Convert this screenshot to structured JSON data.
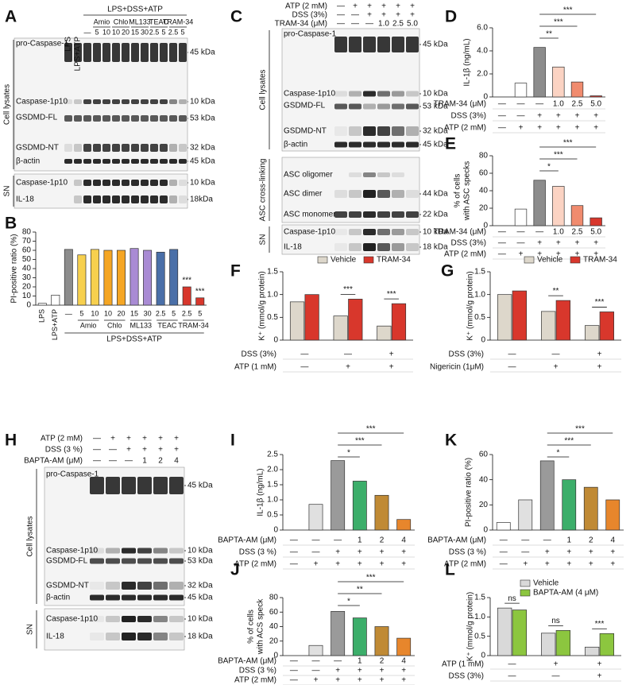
{
  "blots": [
    {
      "panel": "A",
      "lanes": [
        "LPS",
        "LPS+ATP"
      ],
      "treatment": "LPS+DSS+ATP",
      "groups": [
        "Amio",
        "Chlo",
        "ML133",
        "TEAC",
        "TRAM-34"
      ],
      "doses": [
        "—",
        "5",
        "10",
        "10",
        "20",
        "15",
        "30",
        "2.5",
        "5",
        "2.5",
        "5"
      ],
      "sections": [
        "Cell lysates",
        "SN"
      ],
      "rows": [
        {
          "label": "pro-Caspase-1",
          "kda": "45 kDa"
        },
        {
          "label": "Caspase-1p10",
          "kda": "10 kDa"
        },
        {
          "label": "GSDMD-FL",
          "kda": "53 kDa"
        },
        {
          "label": "GSDMD-NT",
          "kda": "32 kDa"
        },
        {
          "label": "β-actin",
          "kda": "45 kDa"
        },
        {
          "label": "Caspase-1p10",
          "kda": "10 kDa"
        },
        {
          "label": "IL-18",
          "kda": "18kDa"
        }
      ]
    },
    {
      "panel": "C",
      "conditions": [
        {
          "label": "ATP (2 mM)",
          "values": [
            "—",
            "+",
            "+",
            "+",
            "+",
            "+"
          ]
        },
        {
          "label": "DSS (3%)",
          "values": [
            "—",
            "—",
            "+",
            "+",
            "+",
            "+"
          ]
        },
        {
          "label": "TRAM-34 (μM)",
          "values": [
            "—",
            "—",
            "—",
            "1.0",
            "2.5",
            "5.0"
          ]
        }
      ],
      "sections": [
        "Cell lysates",
        "ASC cross-linking",
        "SN"
      ],
      "rows": [
        {
          "label": "pro-Caspase-1",
          "kda": "45 kDa"
        },
        {
          "label": "Caspase-1p10",
          "kda": "10 kDa"
        },
        {
          "label": "GSDMD-FL",
          "kda": "53 kDa"
        },
        {
          "label": "GSDMD-NT",
          "kda": "32 kDa"
        },
        {
          "label": "β-actin",
          "kda": "45 kDa"
        },
        {
          "label": "ASC oligomer"
        },
        {
          "label": "ASC dimer",
          "kda": "44 kDa"
        },
        {
          "label": "ASC monomer",
          "kda": "22 kDa"
        },
        {
          "label": "Caspase-1p10",
          "kda": "10 kDa"
        },
        {
          "label": "IL-18",
          "kda": "18 kDa"
        }
      ]
    },
    {
      "panel": "H",
      "conditions": [
        {
          "label": "ATP (2 mM)",
          "values": [
            "—",
            "+",
            "+",
            "+",
            "+",
            "+"
          ]
        },
        {
          "label": "DSS (3 %)",
          "values": [
            "—",
            "—",
            "+",
            "+",
            "+",
            "+"
          ]
        },
        {
          "label": "BAPTA-AM (μM)",
          "values": [
            "—",
            "—",
            "—",
            "1",
            "2",
            "4"
          ]
        }
      ],
      "sections": [
        "Cell lysates",
        "SN"
      ],
      "rows": [
        {
          "label": "pro-Caspase-1",
          "kda": "45 kDa"
        },
        {
          "label": "Caspase-1p10",
          "kda": "10 kDa"
        },
        {
          "label": "GSDMD-FL",
          "kda": "53 kDa"
        },
        {
          "label": "GSDMD-NT",
          "kda": "32 kDa"
        },
        {
          "label": "β-actin",
          "kda": "45 kDa"
        },
        {
          "label": "Caspase-1p10",
          "kda": "10 kDa"
        },
        {
          "label": "IL-18",
          "kda": "18 kDa"
        }
      ]
    }
  ],
  "chart_data": [
    {
      "panel": "B",
      "type": "bar",
      "ylabel": "PI-positive ratio (%)",
      "categories": [
        "LPS",
        "LPS+ATP",
        "—",
        "5",
        "10",
        "10",
        "20",
        "15",
        "30",
        "2.5",
        "5",
        "2.5",
        "5"
      ],
      "groups": [
        "Amio",
        "Chlo",
        "ML133",
        "TEAC",
        "TRAM-34"
      ],
      "group_label": "LPS+DSS+ATP",
      "values": [
        2,
        11,
        61,
        55,
        61,
        60,
        60,
        62,
        60,
        58,
        61,
        20,
        8
      ],
      "colors": [
        "#ffffff",
        "#ffffff",
        "#8c8c8c",
        "#f7d04e",
        "#f7d04e",
        "#f5a623",
        "#f5a623",
        "#a98bd4",
        "#a98bd4",
        "#4a6fa8",
        "#4a6fa8",
        "#d8372c",
        "#d8372c"
      ],
      "ylim": [
        0,
        80
      ],
      "yticks": [
        0,
        10,
        20,
        30,
        40,
        50,
        60,
        70,
        80
      ],
      "annotations": [
        "***",
        "***"
      ]
    },
    {
      "panel": "D",
      "type": "bar",
      "ylabel": "IL-1β (ng/mL)",
      "values": [
        0,
        1.2,
        4.3,
        2.6,
        1.3,
        0.1
      ],
      "colors": [
        "#ffffff",
        "#ffffff",
        "#8c8c8c",
        "#fbd3c3",
        "#f08b6e",
        "#d8372c"
      ],
      "ylim": [
        0,
        6
      ],
      "yticks": [
        0,
        {
          "value": 2,
          "label": "2.0"
        },
        {
          "value": 4,
          "label": "4.0"
        },
        {
          "value": 6,
          "label": "6.0"
        }
      ],
      "conditions": [
        {
          "label": "TRAM-34 (μM)",
          "values": [
            "—",
            "—",
            "—",
            "1.0",
            "2.5",
            "5.0"
          ]
        },
        {
          "label": "DSS (3%)",
          "values": [
            "—",
            "—",
            "+",
            "+",
            "+",
            "+"
          ]
        },
        {
          "label": "ATP (2 mM)",
          "values": [
            "—",
            "+",
            "+",
            "+",
            "+",
            "+"
          ]
        }
      ],
      "annotations": [
        "**",
        "***",
        "***"
      ]
    },
    {
      "panel": "E",
      "type": "bar",
      "ylabel": [
        "% of cells",
        "with ASC specks"
      ],
      "values": [
        0,
        19,
        52,
        45,
        23,
        9
      ],
      "colors": [
        "#ffffff",
        "#ffffff",
        "#8c8c8c",
        "#fbd3c3",
        "#f08b6e",
        "#d8372c"
      ],
      "ylim": [
        0,
        80
      ],
      "yticks": [
        0,
        20,
        40,
        60,
        80
      ],
      "conditions": [
        {
          "label": "TRAM-34 (μM)",
          "values": [
            "—",
            "—",
            "—",
            "1.0",
            "2.5",
            "5.0"
          ]
        },
        {
          "label": "DSS (3%)",
          "values": [
            "—",
            "—",
            "+",
            "+",
            "+",
            "+"
          ]
        },
        {
          "label": "ATP (2 mM)",
          "values": [
            "—",
            "+",
            "+",
            "+",
            "+",
            "+"
          ]
        }
      ],
      "annotations": [
        "*",
        "***",
        "***"
      ]
    },
    {
      "panel": "F",
      "type": "grouped-bar",
      "ylabel": "K⁺ (mmol/g protein)",
      "series": [
        {
          "name": "Vehicle",
          "color": "#ddd7cb",
          "values": [
            0.84,
            0.53,
            0.31
          ]
        },
        {
          "name": "TRAM-34",
          "color": "#d8372c",
          "values": [
            1.0,
            0.9,
            0.8
          ]
        }
      ],
      "ylim": [
        0,
        1.5
      ],
      "yticks": [
        0,
        0.5,
        {
          "value": 1,
          "label": "1.0"
        },
        1.5
      ],
      "conditions": [
        {
          "label": "DSS (3%)",
          "values": [
            "—",
            "—",
            "+"
          ]
        },
        {
          "label": "ATP (1 mM)",
          "values": [
            "—",
            "+",
            "+"
          ]
        }
      ],
      "annotations": [
        "***",
        "***"
      ]
    },
    {
      "panel": "G",
      "type": "grouped-bar",
      "ylabel": "K⁺ (mmol/g protein)",
      "series": [
        {
          "name": "Vehicle",
          "color": "#ddd7cb",
          "values": [
            1.0,
            0.63,
            0.32
          ]
        },
        {
          "name": "TRAM-34",
          "color": "#d8372c",
          "values": [
            1.08,
            0.87,
            0.62
          ]
        }
      ],
      "ylim": [
        0,
        1.5
      ],
      "yticks": [
        0,
        0.5,
        {
          "value": 1,
          "label": "1.0"
        },
        1.5
      ],
      "conditions": [
        {
          "label": "DSS (3%)",
          "values": [
            "—",
            "—",
            "+"
          ]
        },
        {
          "label": "Nigericin (1μM)",
          "values": [
            "—",
            "+",
            "+"
          ]
        }
      ],
      "annotations": [
        "**",
        "***"
      ]
    },
    {
      "panel": "I",
      "type": "bar",
      "ylabel": "IL-1β (ng/mL)",
      "values": [
        0,
        0.85,
        2.3,
        1.62,
        1.15,
        0.35
      ],
      "colors": [
        "#ffffff",
        "#e0e0e0",
        "#9a9a9a",
        "#3cae6a",
        "#c08a35",
        "#e7862c"
      ],
      "ylim": [
        0,
        2.5
      ],
      "yticks": [
        0,
        0.5,
        {
          "value": 1,
          "label": "1.0"
        },
        1.5,
        {
          "value": 2,
          "label": "2.0"
        },
        2.5
      ],
      "conditions": [
        {
          "label": "BAPTA-AM (μM)",
          "values": [
            "—",
            "—",
            "—",
            "1",
            "2",
            "4"
          ]
        },
        {
          "label": "DSS (3 %)",
          "values": [
            "—",
            "—",
            "+",
            "+",
            "+",
            "+"
          ]
        },
        {
          "label": "ATP (2 mM)",
          "values": [
            "—",
            "+",
            "+",
            "+",
            "+",
            "+"
          ]
        }
      ],
      "annotations": [
        "*",
        "***",
        "***"
      ]
    },
    {
      "panel": "J",
      "type": "bar",
      "ylabel": [
        "% of cells",
        "with ACS speck"
      ],
      "values": [
        0,
        14,
        61,
        52,
        40,
        24
      ],
      "colors": [
        "#ffffff",
        "#e0e0e0",
        "#9a9a9a",
        "#3cae6a",
        "#c08a35",
        "#e7862c"
      ],
      "ylim": [
        0,
        80
      ],
      "yticks": [
        0,
        20,
        40,
        60,
        80
      ],
      "conditions": [
        {
          "label": "BAPTA-AM (μM)",
          "values": [
            "—",
            "—",
            "—",
            "1",
            "2",
            "4"
          ]
        },
        {
          "label": "DSS (3 %)",
          "values": [
            "—",
            "—",
            "+",
            "+",
            "+",
            "+"
          ]
        },
        {
          "label": "ATP (2 mM)",
          "values": [
            "—",
            "+",
            "+",
            "+",
            "+",
            "+"
          ]
        }
      ],
      "annotations": [
        "*",
        "**",
        "***"
      ]
    },
    {
      "panel": "K",
      "type": "bar",
      "ylabel": "PI-positive ratio (%)",
      "values": [
        6,
        24,
        55,
        40,
        34,
        24
      ],
      "colors": [
        "#ffffff",
        "#e0e0e0",
        "#9a9a9a",
        "#3cae6a",
        "#c08a35",
        "#e7862c"
      ],
      "ylim": [
        0,
        60
      ],
      "yticks": [
        0,
        20,
        40,
        60
      ],
      "conditions": [
        {
          "label": "BAPTA-AM (μM)",
          "values": [
            "—",
            "—",
            "—",
            "1",
            "2",
            "4"
          ]
        },
        {
          "label": "DSS (3 %)",
          "values": [
            "—",
            "—",
            "+",
            "+",
            "+",
            "+"
          ]
        },
        {
          "label": "ATP (2 mM)",
          "values": [
            "—",
            "+",
            "+",
            "+",
            "+",
            "+"
          ]
        }
      ],
      "annotations": [
        "*",
        "***",
        "***"
      ]
    },
    {
      "panel": "L",
      "type": "grouped-bar",
      "ylabel": "K⁺ (mmol/g protein)",
      "series": [
        {
          "name": "Vehicle",
          "color": "#d9d9d9",
          "values": [
            1.23,
            0.58,
            0.22
          ]
        },
        {
          "name": "BAPTA-AM (4 μM)",
          "color": "#8cc63f",
          "values": [
            1.18,
            0.65,
            0.57
          ]
        }
      ],
      "ylim": [
        0,
        1.5
      ],
      "yticks": [
        0,
        0.5,
        {
          "value": 1,
          "label": "1.0"
        },
        1.5
      ],
      "conditions": [
        {
          "label": "ATP (1 mM)",
          "values": [
            "—",
            "+",
            "+"
          ]
        },
        {
          "label": "DSS (3%)",
          "values": [
            "—",
            "—",
            "+"
          ]
        }
      ],
      "annotations": [
        "ns",
        "ns",
        "***"
      ]
    }
  ]
}
